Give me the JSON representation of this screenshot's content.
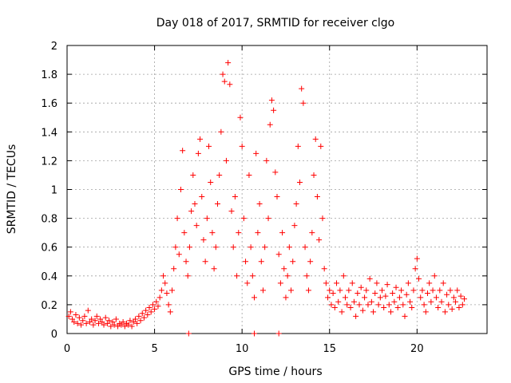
{
  "chart_data": {
    "type": "scatter",
    "title": "Day 018 of 2017, SRMTID for receiver clgo",
    "xlabel": "GPS time / hours",
    "ylabel": "SRMTID / TECUs",
    "xlim": [
      0,
      24
    ],
    "ylim": [
      0,
      2
    ],
    "x_ticks": [
      0,
      5,
      10,
      15,
      20
    ],
    "y_ticks": [
      0,
      0.2,
      0.4,
      0.6,
      0.8,
      1,
      1.2,
      1.4,
      1.6,
      1.8,
      2
    ],
    "x_tick_labels": [
      "0",
      "5",
      "10",
      "15",
      "20"
    ],
    "y_tick_labels": [
      "0",
      "0.2",
      "0.4",
      "0.6",
      "0.8",
      "1",
      "1.2",
      "1.4",
      "1.6",
      "1.8",
      "2"
    ],
    "grid": true,
    "marker": "plus",
    "color": "#ff0000",
    "series": [
      {
        "name": "SRMTID",
        "points": [
          [
            0.1,
            0.12
          ],
          [
            0.2,
            0.15
          ],
          [
            0.3,
            0.1
          ],
          [
            0.4,
            0.08
          ],
          [
            0.5,
            0.13
          ],
          [
            0.6,
            0.07
          ],
          [
            0.7,
            0.11
          ],
          [
            0.8,
            0.06
          ],
          [
            0.9,
            0.09
          ],
          [
            1.0,
            0.12
          ],
          [
            1.1,
            0.07
          ],
          [
            1.2,
            0.16
          ],
          [
            1.3,
            0.08
          ],
          [
            1.4,
            0.1
          ],
          [
            1.5,
            0.06
          ],
          [
            1.6,
            0.09
          ],
          [
            1.7,
            0.12
          ],
          [
            1.8,
            0.07
          ],
          [
            1.9,
            0.1
          ],
          [
            2.0,
            0.08
          ],
          [
            2.1,
            0.06
          ],
          [
            2.2,
            0.11
          ],
          [
            2.3,
            0.07
          ],
          [
            2.4,
            0.09
          ],
          [
            2.5,
            0.05
          ],
          [
            2.6,
            0.08
          ],
          [
            2.7,
            0.06
          ],
          [
            2.8,
            0.1
          ],
          [
            2.9,
            0.05
          ],
          [
            3.0,
            0.07
          ],
          [
            3.1,
            0.06
          ],
          [
            3.2,
            0.08
          ],
          [
            3.3,
            0.05
          ],
          [
            3.4,
            0.07
          ],
          [
            3.5,
            0.06
          ],
          [
            3.6,
            0.09
          ],
          [
            3.7,
            0.05
          ],
          [
            3.8,
            0.08
          ],
          [
            3.9,
            0.1
          ],
          [
            4.0,
            0.07
          ],
          [
            4.1,
            0.12
          ],
          [
            4.2,
            0.09
          ],
          [
            4.3,
            0.14
          ],
          [
            4.4,
            0.11
          ],
          [
            4.5,
            0.16
          ],
          [
            4.6,
            0.13
          ],
          [
            4.7,
            0.18
          ],
          [
            4.8,
            0.15
          ],
          [
            4.9,
            0.2
          ],
          [
            5.0,
            0.17
          ],
          [
            5.1,
            0.22
          ],
          [
            5.2,
            0.19
          ],
          [
            5.3,
            0.25
          ],
          [
            5.4,
            0.3
          ],
          [
            5.5,
            0.4
          ],
          [
            5.6,
            0.35
          ],
          [
            5.7,
            0.28
          ],
          [
            5.8,
            0.2
          ],
          [
            5.9,
            0.15
          ],
          [
            6.0,
            0.3
          ],
          [
            6.1,
            0.45
          ],
          [
            6.2,
            0.6
          ],
          [
            6.3,
            0.8
          ],
          [
            6.4,
            0.55
          ],
          [
            6.5,
            1.0
          ],
          [
            6.6,
            1.27
          ],
          [
            6.7,
            0.7
          ],
          [
            6.8,
            0.5
          ],
          [
            6.9,
            0.4
          ],
          [
            7.0,
            0.6
          ],
          [
            7.1,
            0.85
          ],
          [
            7.2,
            1.1
          ],
          [
            7.3,
            0.9
          ],
          [
            7.4,
            0.75
          ],
          [
            7.5,
            1.25
          ],
          [
            7.6,
            1.35
          ],
          [
            7.7,
            0.95
          ],
          [
            7.8,
            0.65
          ],
          [
            7.9,
            0.5
          ],
          [
            8.0,
            0.8
          ],
          [
            8.1,
            1.3
          ],
          [
            8.2,
            1.05
          ],
          [
            8.3,
            0.7
          ],
          [
            8.4,
            0.45
          ],
          [
            8.5,
            0.6
          ],
          [
            8.6,
            0.9
          ],
          [
            8.7,
            1.1
          ],
          [
            8.8,
            1.4
          ],
          [
            8.9,
            1.8
          ],
          [
            9.0,
            1.75
          ],
          [
            9.1,
            1.2
          ],
          [
            9.2,
            1.88
          ],
          [
            9.3,
            1.73
          ],
          [
            9.4,
            0.85
          ],
          [
            9.5,
            0.6
          ],
          [
            9.6,
            0.95
          ],
          [
            9.7,
            0.4
          ],
          [
            9.8,
            0.7
          ],
          [
            9.9,
            1.5
          ],
          [
            10.0,
            1.3
          ],
          [
            10.1,
            0.8
          ],
          [
            10.2,
            0.5
          ],
          [
            10.3,
            0.35
          ],
          [
            10.4,
            1.1
          ],
          [
            10.5,
            0.6
          ],
          [
            10.6,
            0.4
          ],
          [
            10.7,
            0.25
          ],
          [
            10.8,
            1.25
          ],
          [
            10.9,
            0.7
          ],
          [
            11.0,
            0.9
          ],
          [
            11.1,
            0.5
          ],
          [
            11.2,
            0.3
          ],
          [
            11.3,
            0.6
          ],
          [
            11.4,
            1.2
          ],
          [
            11.5,
            0.8
          ],
          [
            11.6,
            1.45
          ],
          [
            11.7,
            1.62
          ],
          [
            11.8,
            1.55
          ],
          [
            11.9,
            1.12
          ],
          [
            12.0,
            0.95
          ],
          [
            12.1,
            0.55
          ],
          [
            12.2,
            0.35
          ],
          [
            12.3,
            0.7
          ],
          [
            12.4,
            0.45
          ],
          [
            12.5,
            0.25
          ],
          [
            12.6,
            0.4
          ],
          [
            12.7,
            0.6
          ],
          [
            12.8,
            0.3
          ],
          [
            12.9,
            0.5
          ],
          [
            13.0,
            0.75
          ],
          [
            13.1,
            0.9
          ],
          [
            13.2,
            1.3
          ],
          [
            13.3,
            1.05
          ],
          [
            13.4,
            1.7
          ],
          [
            13.5,
            1.6
          ],
          [
            13.6,
            0.6
          ],
          [
            13.7,
            0.4
          ],
          [
            13.8,
            0.3
          ],
          [
            13.9,
            0.5
          ],
          [
            14.0,
            0.7
          ],
          [
            14.1,
            1.1
          ],
          [
            14.2,
            1.35
          ],
          [
            14.3,
            0.95
          ],
          [
            14.4,
            0.65
          ],
          [
            14.5,
            1.3
          ],
          [
            14.6,
            0.8
          ],
          [
            14.7,
            0.45
          ],
          [
            14.8,
            0.35
          ],
          [
            14.9,
            0.25
          ],
          [
            15.0,
            0.3
          ],
          [
            15.1,
            0.2
          ],
          [
            15.2,
            0.28
          ],
          [
            15.3,
            0.18
          ],
          [
            15.4,
            0.35
          ],
          [
            15.5,
            0.22
          ],
          [
            15.6,
            0.3
          ],
          [
            15.7,
            0.15
          ],
          [
            15.8,
            0.4
          ],
          [
            15.9,
            0.25
          ],
          [
            16.0,
            0.2
          ],
          [
            16.1,
            0.3
          ],
          [
            16.2,
            0.18
          ],
          [
            16.3,
            0.35
          ],
          [
            16.4,
            0.22
          ],
          [
            16.5,
            0.12
          ],
          [
            16.6,
            0.28
          ],
          [
            16.7,
            0.2
          ],
          [
            16.8,
            0.32
          ],
          [
            16.9,
            0.16
          ],
          [
            17.0,
            0.25
          ],
          [
            17.1,
            0.3
          ],
          [
            17.2,
            0.2
          ],
          [
            17.3,
            0.38
          ],
          [
            17.4,
            0.22
          ],
          [
            17.5,
            0.15
          ],
          [
            17.6,
            0.28
          ],
          [
            17.7,
            0.35
          ],
          [
            17.8,
            0.2
          ],
          [
            17.9,
            0.25
          ],
          [
            18.0,
            0.3
          ],
          [
            18.1,
            0.18
          ],
          [
            18.2,
            0.26
          ],
          [
            18.3,
            0.34
          ],
          [
            18.4,
            0.2
          ],
          [
            18.5,
            0.15
          ],
          [
            18.6,
            0.28
          ],
          [
            18.7,
            0.22
          ],
          [
            18.8,
            0.32
          ],
          [
            18.9,
            0.18
          ],
          [
            19.0,
            0.25
          ],
          [
            19.1,
            0.3
          ],
          [
            19.2,
            0.2
          ],
          [
            19.3,
            0.12
          ],
          [
            19.4,
            0.27
          ],
          [
            19.5,
            0.35
          ],
          [
            19.6,
            0.22
          ],
          [
            19.7,
            0.18
          ],
          [
            19.8,
            0.3
          ],
          [
            19.9,
            0.45
          ],
          [
            20.0,
            0.52
          ],
          [
            20.1,
            0.38
          ],
          [
            20.2,
            0.25
          ],
          [
            20.3,
            0.3
          ],
          [
            20.4,
            0.2
          ],
          [
            20.5,
            0.15
          ],
          [
            20.6,
            0.28
          ],
          [
            20.7,
            0.35
          ],
          [
            20.8,
            0.22
          ],
          [
            20.9,
            0.3
          ],
          [
            21.0,
            0.4
          ],
          [
            21.1,
            0.25
          ],
          [
            21.2,
            0.18
          ],
          [
            21.3,
            0.3
          ],
          [
            21.4,
            0.22
          ],
          [
            21.5,
            0.35
          ],
          [
            21.6,
            0.15
          ],
          [
            21.7,
            0.27
          ],
          [
            21.8,
            0.2
          ],
          [
            21.9,
            0.3
          ],
          [
            22.0,
            0.17
          ],
          [
            22.1,
            0.25
          ],
          [
            22.2,
            0.22
          ],
          [
            22.3,
            0.3
          ],
          [
            22.4,
            0.18
          ],
          [
            22.5,
            0.26
          ],
          [
            22.6,
            0.2
          ],
          [
            22.7,
            0.24
          ],
          [
            6.95,
            0.0
          ],
          [
            10.7,
            0.0
          ],
          [
            12.1,
            0.0
          ]
        ]
      }
    ]
  }
}
